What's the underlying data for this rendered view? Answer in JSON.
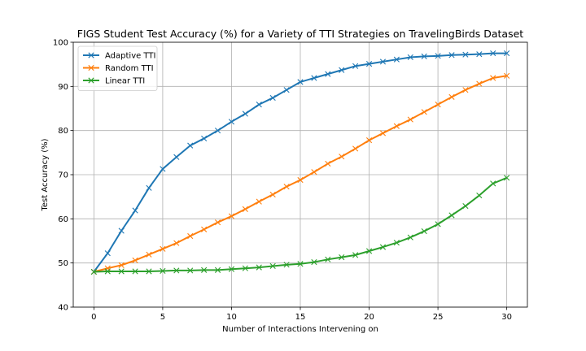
{
  "chart_data": {
    "type": "line",
    "title": "FIGS Student Test Accuracy (%) for a Variety of TTI Strategies on TravelingBirds Dataset",
    "xlabel": "Number of Interactions Intervening on",
    "ylabel": "Test Accuracy (%)",
    "xlim": [
      -1.5,
      31.5
    ],
    "ylim": [
      40,
      100
    ],
    "xticks": [
      0,
      5,
      10,
      15,
      20,
      25,
      30
    ],
    "yticks": [
      40,
      50,
      60,
      70,
      80,
      90,
      100
    ],
    "grid": true,
    "legend_position": "top-left",
    "x": [
      0,
      1,
      2,
      3,
      4,
      5,
      6,
      7,
      8,
      9,
      10,
      11,
      12,
      13,
      14,
      15,
      16,
      17,
      18,
      19,
      20,
      21,
      22,
      23,
      24,
      25,
      26,
      27,
      28,
      29,
      30
    ],
    "series": [
      {
        "name": "Adaptive TTI",
        "color": "#1f77b4",
        "marker": "x",
        "values": [
          48.0,
          52.2,
          57.3,
          61.9,
          67.0,
          71.3,
          74.0,
          76.6,
          78.2,
          80.0,
          82.0,
          83.8,
          85.9,
          87.4,
          89.2,
          91.0,
          91.9,
          92.8,
          93.7,
          94.6,
          95.1,
          95.6,
          96.1,
          96.6,
          96.8,
          96.9,
          97.1,
          97.2,
          97.3,
          97.5,
          97.5
        ]
      },
      {
        "name": "Random TTI",
        "color": "#ff7f0e",
        "marker": "x",
        "values": [
          48.0,
          48.8,
          49.5,
          50.6,
          51.9,
          53.2,
          54.5,
          56.1,
          57.6,
          59.2,
          60.6,
          62.2,
          63.9,
          65.5,
          67.3,
          68.8,
          70.6,
          72.5,
          74.1,
          75.9,
          77.8,
          79.4,
          81.0,
          82.5,
          84.2,
          85.9,
          87.6,
          89.2,
          90.6,
          91.9,
          92.4
        ]
      },
      {
        "name": "Linear TTI",
        "color": "#2ca02c",
        "marker": "x",
        "values": [
          48.0,
          48.1,
          48.1,
          48.1,
          48.1,
          48.2,
          48.3,
          48.3,
          48.4,
          48.4,
          48.6,
          48.8,
          49.0,
          49.3,
          49.6,
          49.8,
          50.2,
          50.8,
          51.3,
          51.8,
          52.7,
          53.6,
          54.6,
          55.8,
          57.2,
          58.8,
          60.8,
          62.9,
          65.3,
          68.0,
          69.3
        ]
      }
    ]
  }
}
